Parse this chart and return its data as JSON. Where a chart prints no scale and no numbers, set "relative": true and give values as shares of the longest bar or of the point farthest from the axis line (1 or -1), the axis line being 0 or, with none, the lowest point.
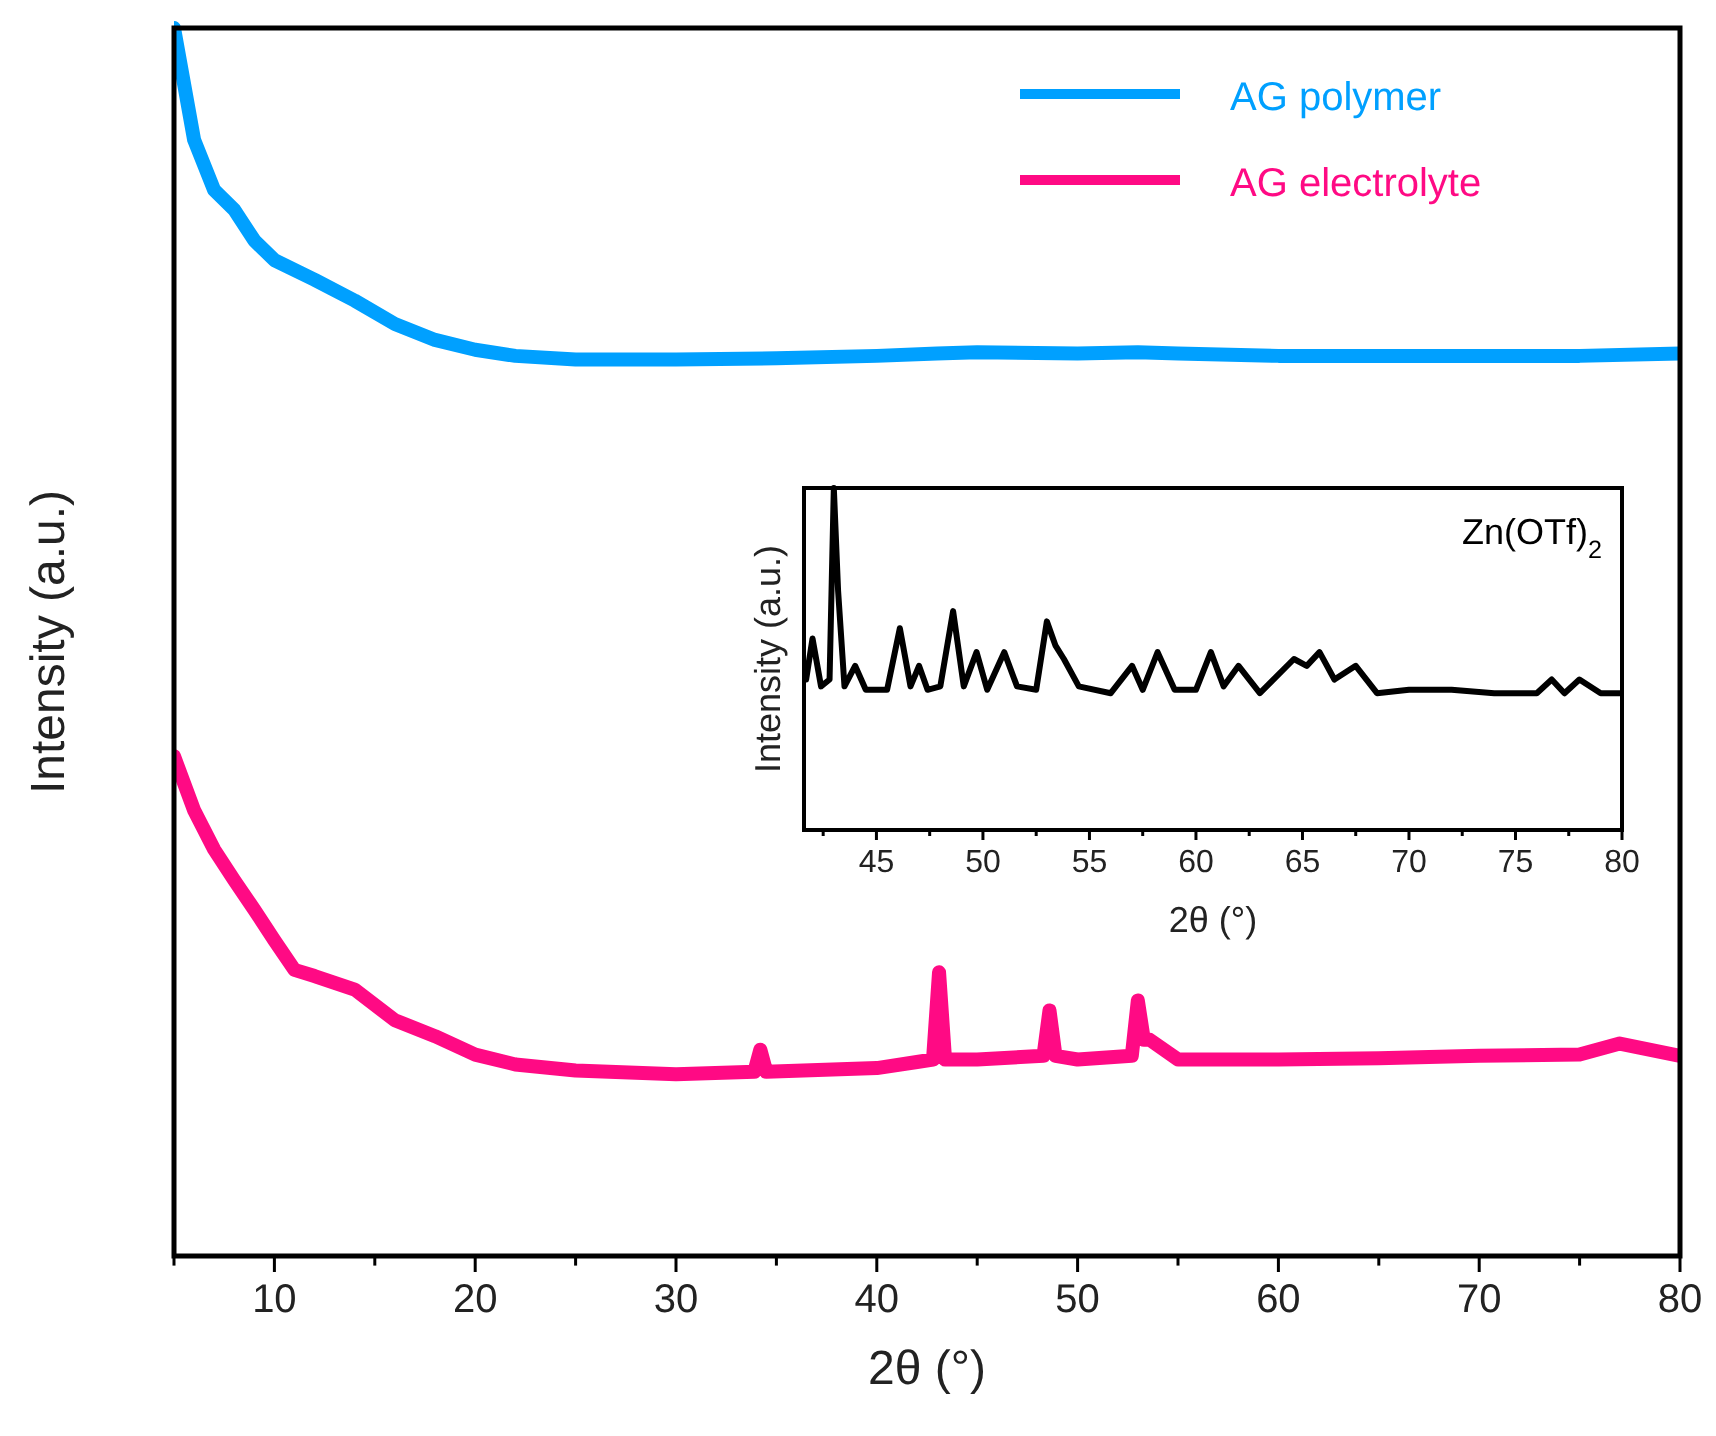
{
  "chart_data": [
    {
      "type": "line",
      "xlabel": "2θ (°)",
      "ylabel": "Intensity (a.u.)",
      "relative": true,
      "tick_labels": "x",
      "legend": "top right",
      "xlim": [
        5,
        80
      ],
      "xticks": [
        {
          "value": 5,
          "label": null
        },
        10,
        {
          "value": 15,
          "label": null
        },
        20,
        {
          "value": 25,
          "label": null
        },
        30,
        {
          "value": 35,
          "label": null
        },
        40,
        {
          "value": 45,
          "label": null
        },
        50,
        {
          "value": 55,
          "label": null
        },
        60,
        {
          "value": 65,
          "label": null
        },
        70,
        {
          "value": 75,
          "label": null
        },
        80
      ],
      "series": [
        {
          "name": "AG polymer",
          "color": "#00a0ff",
          "x": [
            5,
            6,
            7,
            8,
            9,
            10,
            12,
            14,
            16,
            18,
            20,
            22,
            25,
            30,
            35,
            40,
            43,
            45,
            50,
            53,
            55,
            60,
            65,
            70,
            75,
            80
          ],
          "values": [
            1,
            0.909,
            0.868,
            0.852,
            0.827,
            0.811,
            0.795,
            0.778,
            0.759,
            0.746,
            0.738,
            0.733,
            0.73,
            0.73,
            0.731,
            0.733,
            0.735,
            0.736,
            0.735,
            0.736,
            0.735,
            0.733,
            0.733,
            0.733,
            0.733,
            0.735
          ]
        },
        {
          "name": "AG electrolyte",
          "color": "#ff0a84",
          "x": [
            5,
            6,
            7,
            8,
            9,
            10,
            11,
            12,
            14,
            16,
            18,
            20,
            22,
            25,
            30,
            33.9,
            34.2,
            34.5,
            40,
            42,
            42.8,
            43.1,
            43.4,
            45,
            48.3,
            48.6,
            48.9,
            50,
            52.7,
            53,
            53.3,
            53.6,
            55,
            60,
            65,
            70,
            75,
            77,
            80
          ],
          "values": [
            0.407,
            0.363,
            0.331,
            0.306,
            0.282,
            0.257,
            0.233,
            0.228,
            0.217,
            0.192,
            0.179,
            0.164,
            0.156,
            0.151,
            0.148,
            0.15,
            0.168,
            0.15,
            0.153,
            0.158,
            0.16,
            0.231,
            0.16,
            0.16,
            0.163,
            0.2,
            0.163,
            0.16,
            0.163,
            0.208,
            0.176,
            0.176,
            0.16,
            0.16,
            0.161,
            0.163,
            0.164,
            0.173,
            0.163
          ]
        }
      ]
    },
    {
      "type": "line",
      "xlabel": "2θ (°)",
      "ylabel": "Intensity (a.u.)",
      "relative": true,
      "tick_labels": "x",
      "xlim": [
        41.6,
        80
      ],
      "xticks": [
        {
          "value": 42.5,
          "label": null
        },
        45,
        {
          "value": 47.5,
          "label": null
        },
        50,
        {
          "value": 52.5,
          "label": null
        },
        55,
        {
          "value": 57.5,
          "label": null
        },
        60,
        {
          "value": 62.5,
          "label": null
        },
        65,
        {
          "value": 67.5,
          "label": null
        },
        70,
        {
          "value": 72.5,
          "label": null
        },
        75,
        {
          "value": 77.5,
          "label": null
        },
        80
      ],
      "series": [
        {
          "name": "Zn(OTf)$_{2}$",
          "color": "#000000",
          "x": [
            41.7,
            42,
            42.4,
            42.8,
            43,
            43.2,
            43.5,
            44,
            44.5,
            45.5,
            46.1,
            46.6,
            47,
            47.4,
            48,
            48.6,
            49.1,
            49.7,
            50.2,
            51,
            51.6,
            52.5,
            53,
            53.4,
            53.8,
            54.5,
            56,
            57,
            57.5,
            58.2,
            59,
            60,
            60.7,
            61.3,
            62,
            63,
            64.6,
            65.2,
            65.8,
            66.5,
            67.5,
            68.5,
            70,
            72,
            74,
            76,
            76.7,
            77.3,
            78,
            79,
            80
          ],
          "values": [
            0.44,
            0.56,
            0.42,
            0.44,
            1,
            0.7,
            0.42,
            0.48,
            0.41,
            0.41,
            0.59,
            0.42,
            0.48,
            0.41,
            0.42,
            0.64,
            0.42,
            0.52,
            0.41,
            0.52,
            0.42,
            0.41,
            0.61,
            0.54,
            0.5,
            0.42,
            0.4,
            0.48,
            0.41,
            0.52,
            0.41,
            0.41,
            0.52,
            0.42,
            0.48,
            0.4,
            0.5,
            0.48,
            0.52,
            0.44,
            0.48,
            0.4,
            0.41,
            0.41,
            0.4,
            0.4,
            0.44,
            0.4,
            0.44,
            0.4,
            0.4
          ]
        }
      ]
    }
  ]
}
